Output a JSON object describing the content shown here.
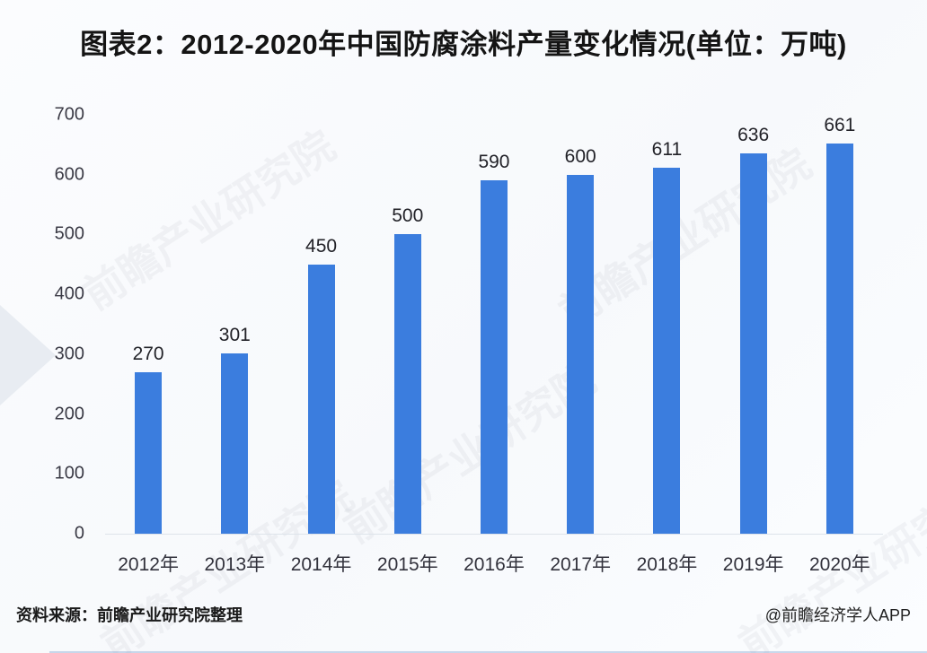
{
  "chart_data": {
    "type": "bar",
    "title": "图表2：2012-2020年中国防腐涂料产量变化情况(单位：万吨)",
    "categories": [
      "2012年",
      "2013年",
      "2014年",
      "2015年",
      "2016年",
      "2017年",
      "2018年",
      "2019年",
      "2020年"
    ],
    "values": [
      270,
      301,
      450,
      500,
      590,
      600,
      611,
      636,
      661
    ],
    "ylabel": "",
    "xlabel": "",
    "unit": "万吨",
    "ylim": [
      0,
      700
    ],
    "yticks": [
      0,
      100,
      200,
      300,
      400,
      500,
      600,
      700
    ],
    "grid": false,
    "legend": false,
    "bar_color": "#3b7dde"
  },
  "footer": {
    "source": "资料来源：前瞻产业研究院整理",
    "credit": "@前瞻经济学人APP"
  },
  "watermark": {
    "text": "前瞻产业研究院"
  }
}
